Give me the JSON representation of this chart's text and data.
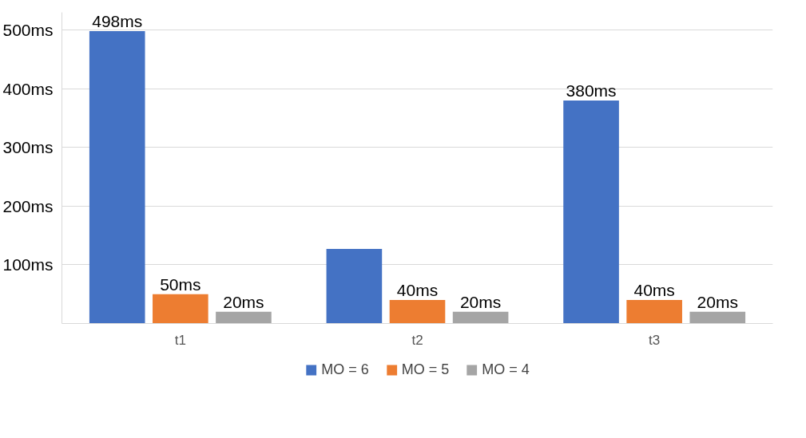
{
  "chart_data": {
    "type": "bar",
    "categories": [
      "t1",
      "t2",
      "t3"
    ],
    "series": [
      {
        "name": "MO = 6",
        "color": "#4472c4",
        "values": [
          498,
          127,
          380
        ],
        "value_labels": [
          "498ms",
          null,
          "380ms"
        ]
      },
      {
        "name": "MO = 5",
        "color": "#ed7d31",
        "values": [
          50,
          40,
          40
        ],
        "value_labels": [
          "50ms",
          "40ms",
          "40ms"
        ]
      },
      {
        "name": "MO = 4",
        "color": "#a5a5a5",
        "values": [
          20,
          20,
          20
        ],
        "value_labels": [
          "20ms",
          "20ms",
          "20ms"
        ]
      }
    ],
    "ylim": [
      0,
      530
    ],
    "yticks": [
      {
        "value": 0,
        "label": null
      },
      {
        "value": 100,
        "label": "100ms"
      },
      {
        "value": 200,
        "label": "200ms"
      },
      {
        "value": 300,
        "label": "300ms"
      },
      {
        "value": 400,
        "label": "400ms"
      },
      {
        "value": 500,
        "label": "500ms"
      }
    ],
    "grid": "y",
    "legend": "bottom"
  }
}
